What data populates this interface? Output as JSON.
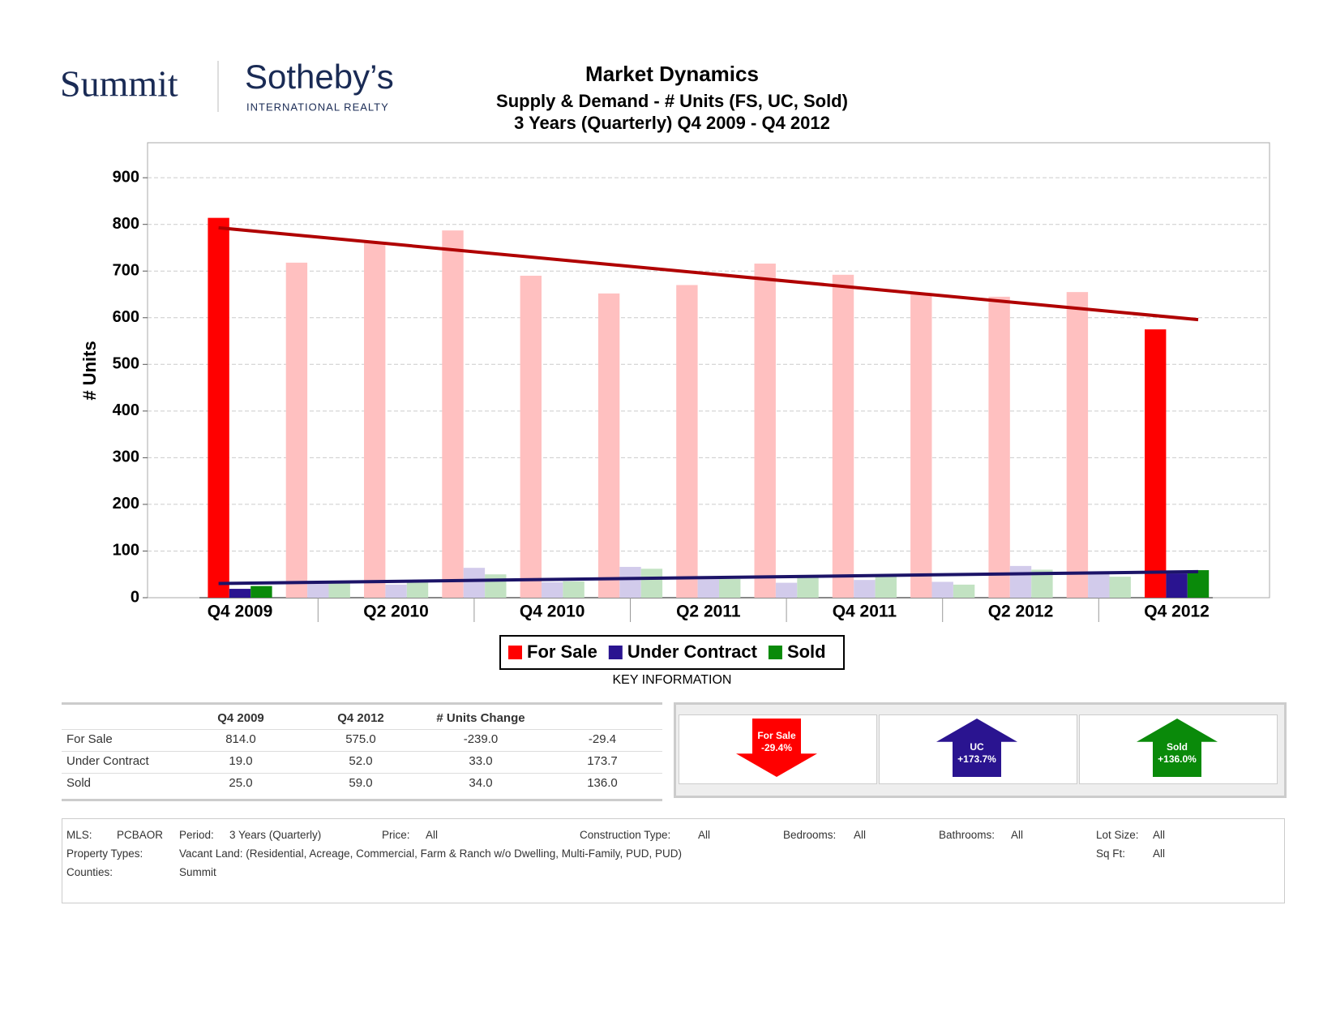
{
  "header": {
    "brand": "Summit",
    "logo": "Sotheby’s",
    "logo_sub": "INTERNATIONAL REALTY"
  },
  "chart_data": {
    "type": "bar",
    "title": "Market Dynamics",
    "subtitle": "Supply & Demand - # Units (FS, UC, Sold)",
    "subtitle2": "3 Years (Quarterly) Q4 2009 - Q4 2012",
    "y_label": "# Units",
    "categories": [
      "Q4 2009",
      null,
      "Q2 2010",
      null,
      "Q4 2010",
      null,
      "Q2 2011",
      null,
      "Q4 2011",
      null,
      "Q2 2012",
      null,
      "Q4 2012"
    ],
    "series": [
      {
        "name": "For Sale",
        "color": "#ff0000",
        "faded_color": "#ffc0c0",
        "trend_color": "#b00000",
        "values": [
          814,
          718,
          762,
          787,
          690,
          652,
          670,
          716,
          692,
          650,
          645,
          655,
          575
        ]
      },
      {
        "name": "Under Contract",
        "color": "#2a1490",
        "faded_color": "#d2cbeb",
        "trend_color": "#1c1468",
        "values": [
          19,
          35,
          28,
          64,
          33,
          66,
          40,
          32,
          38,
          34,
          68,
          52,
          52
        ]
      },
      {
        "name": "Sold",
        "color": "#0a8a0a",
        "faded_color": "#c2e2c2",
        "values": [
          25,
          33,
          35,
          50,
          35,
          62,
          40,
          45,
          48,
          28,
          60,
          45,
          59
        ]
      }
    ],
    "ylim": [
      0,
      975
    ],
    "yticks": [
      0,
      100,
      200,
      300,
      400,
      500,
      600,
      700,
      800,
      900
    ],
    "grid": true
  },
  "key_title": "KEY INFORMATION",
  "table": {
    "columns": [
      "Q4 2009",
      "Q4 2012",
      "# Units Change"
    ],
    "rows": [
      [
        "For Sale",
        "814.0",
        "575.0",
        "-239.0",
        "-29.4"
      ],
      [
        "Under Contract",
        "19.0",
        "52.0",
        "33.0",
        "173.7"
      ],
      [
        "Sold",
        "25.0",
        "59.0",
        "34.0",
        "136.0"
      ]
    ]
  },
  "key_info": [
    {
      "label": "For Sale",
      "change": "-29.4%",
      "direction": "down",
      "color": "#ff0000"
    },
    {
      "label": "UC",
      "change": "+173.7%",
      "direction": "up",
      "color": "#2a1490"
    },
    {
      "label": "Sold",
      "change": "+136.0%",
      "direction": "up",
      "color": "#0a8a0a"
    }
  ],
  "filters": [
    {
      "label": "MLS:",
      "value": "PCBAOR"
    },
    {
      "label": "Period:",
      "value": "3 Years (Quarterly)"
    },
    {
      "label": "Price:",
      "value": "All"
    },
    {
      "label": "Construction Type:",
      "value": "All"
    },
    {
      "label": "Bedrooms:",
      "value": "All"
    },
    {
      "label": "Bathrooms:",
      "value": "All"
    },
    {
      "label": "Lot Size:",
      "value": "All"
    },
    {
      "label": "Property Types:",
      "value": "Vacant Land: (Residential, Acreage, Commercial, Farm & Ranch w/o Dwelling, Multi-Family, PUD, PUD)"
    },
    {
      "label": "Sq Ft:",
      "value": "All"
    },
    {
      "label": "Counties:",
      "value": "Summit"
    }
  ]
}
